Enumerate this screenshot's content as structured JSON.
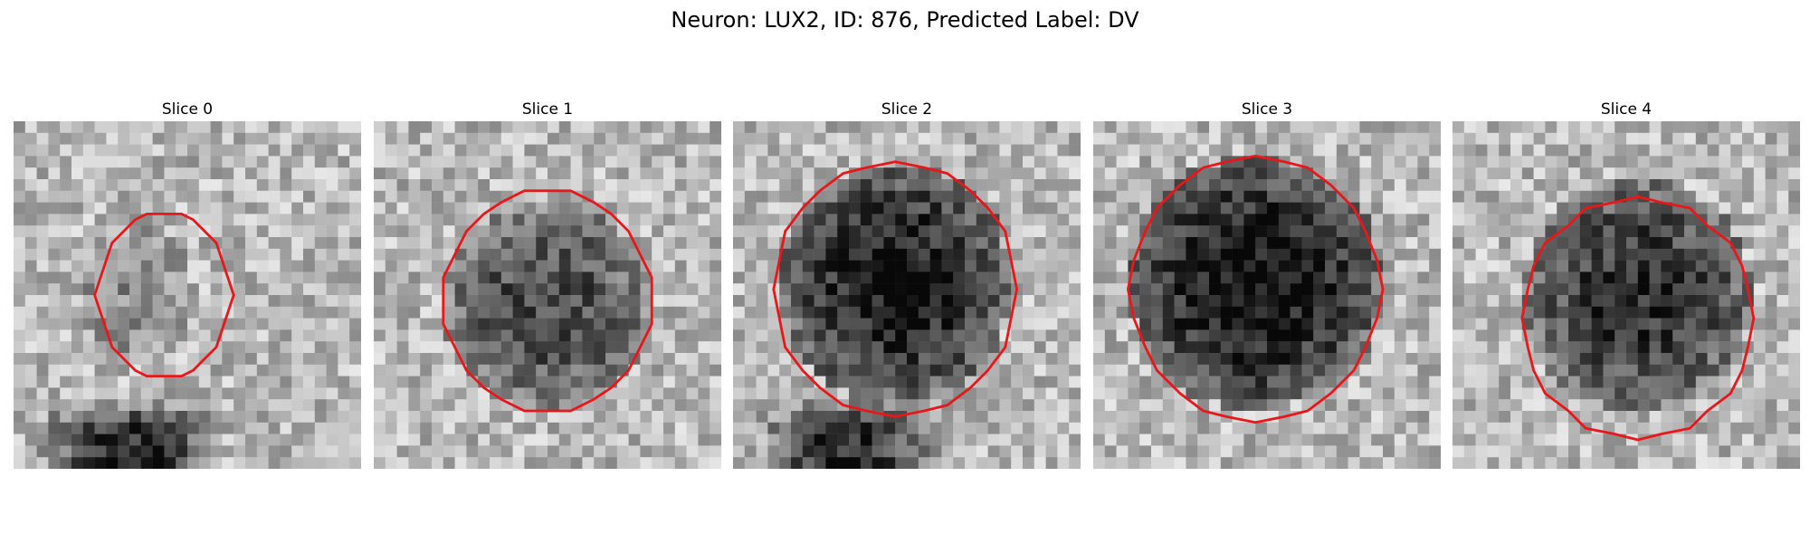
{
  "figure": {
    "title": "Neuron: LUX2, ID: 876, Predicted Label: DV"
  },
  "panels": [
    {
      "title": "Slice 0"
    },
    {
      "title": "Slice 1"
    },
    {
      "title": "Slice 2"
    },
    {
      "title": "Slice 3"
    },
    {
      "title": "Slice 4"
    }
  ],
  "colors": {
    "outline": "#e8171a",
    "background": "#ffffff"
  }
}
